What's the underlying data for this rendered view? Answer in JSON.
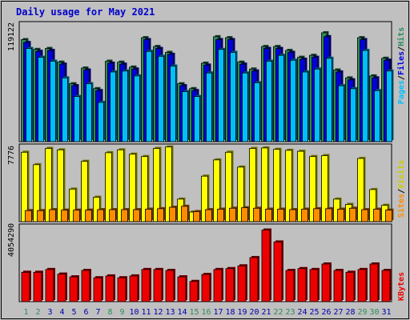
{
  "title": "Daily usage for May 2021",
  "colors": {
    "background": "#c0c0c0",
    "plot_background": "#c0c0c0",
    "title": "#0000cc",
    "hits": "#2e8b57",
    "files": "#0000dd",
    "pages": "#00bfff",
    "visits": "#ffff00",
    "sites": "#ff8c00",
    "kbytes": "#ee0000",
    "weekend_day": "#2e8b57",
    "weekday": "#0000aa"
  },
  "side_labels": {
    "top_max": "119122",
    "mid_max": "7776",
    "bot_max": "4054290",
    "pages": "Pages",
    "files": "Files",
    "hits": "Hits",
    "sites": "Sites",
    "visits": "Visits",
    "kbytes": "KBytes",
    "slash": "/"
  },
  "chart_data": {
    "type": "bar",
    "title": "Daily usage for May 2021",
    "categories": [
      "1",
      "2",
      "3",
      "4",
      "5",
      "6",
      "7",
      "8",
      "9",
      "10",
      "11",
      "12",
      "13",
      "14",
      "15",
      "16",
      "17",
      "18",
      "19",
      "20",
      "21",
      "22",
      "23",
      "24",
      "25",
      "26",
      "27",
      "28",
      "29",
      "30",
      "31"
    ],
    "weekend_days": [
      "1",
      "2",
      "8",
      "9",
      "15",
      "16",
      "22",
      "23",
      "29",
      "30"
    ],
    "panels": [
      {
        "panel": "top",
        "ymax": 119122,
        "series": [
          {
            "name": "Hits",
            "values": [
              104000,
              94000,
              95000,
              81000,
              59000,
              75000,
              54000,
              82000,
              81000,
              76000,
              106000,
              97000,
              91000,
              59000,
              54000,
              80000,
              107000,
              106000,
              81000,
              74000,
              97000,
              97000,
              93000,
              86000,
              88000,
              111000,
              73000,
              65000,
              106000,
              67000,
              85000
            ]
          },
          {
            "name": "Files",
            "values": [
              101000,
              92000,
              93000,
              79000,
              57000,
              73000,
              52000,
              80000,
              79000,
              74000,
              104000,
              95000,
              89000,
              57000,
              52000,
              78000,
              104000,
              104000,
              79000,
              72000,
              95000,
              95000,
              91000,
              84000,
              86000,
              107000,
              71000,
              63000,
              104000,
              65000,
              83000
            ]
          },
          {
            "name": "Pages",
            "values": [
              95000,
              86000,
              82000,
              65000,
              46000,
              59000,
              40000,
              71000,
              72000,
              67000,
              92000,
              87000,
              77000,
              51000,
              46000,
              70000,
              94000,
              91000,
              70000,
              60000,
              82000,
              88000,
              83000,
              71000,
              74000,
              85000,
              57000,
              54000,
              93000,
              52000,
              72000
            ]
          }
        ]
      },
      {
        "panel": "middle",
        "ymax": 7776,
        "series": [
          {
            "name": "Visits",
            "values": [
              7250,
              5950,
              7650,
              7500,
              3400,
              6300,
              2550,
              7200,
              7500,
              7050,
              6800,
              7650,
              7800,
              2350,
              1000,
              4750,
              6450,
              7250,
              5700,
              7650,
              7700,
              7550,
              7450,
              7350,
              6800,
              6900,
              2350,
              1800,
              6600,
              3350,
              1700
            ]
          },
          {
            "name": "Sites",
            "values": [
              1150,
              1150,
              1250,
              1200,
              1200,
              1200,
              1250,
              1250,
              1250,
              1250,
              1300,
              1350,
              1500,
              1600,
              1050,
              1250,
              1300,
              1400,
              1450,
              1400,
              1300,
              1300,
              1250,
              1300,
              1350,
              1350,
              1300,
              1400,
              1250,
              1300,
              1200
            ]
          }
        ]
      },
      {
        "panel": "bottom",
        "ymax": 4054290,
        "series": [
          {
            "name": "KBytes",
            "values": [
              1600000,
              1600000,
              1750000,
              1500000,
              1350000,
              1700000,
              1300000,
              1400000,
              1300000,
              1400000,
              1750000,
              1750000,
              1700000,
              1350000,
              1100000,
              1480000,
              1750000,
              1800000,
              1950000,
              2400000,
              3900000,
              3250000,
              1700000,
              1800000,
              1750000,
              2050000,
              1700000,
              1600000,
              1750000,
              2050000,
              1700000
            ]
          }
        ]
      }
    ],
    "legend": "right-side-vertical",
    "grid": false
  }
}
